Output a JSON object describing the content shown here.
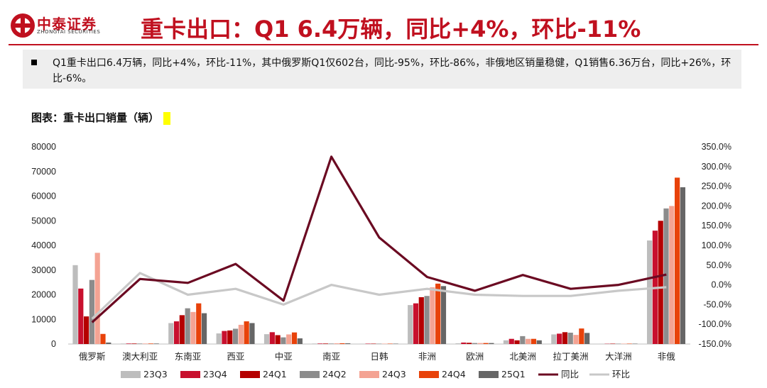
{
  "header": {
    "logo_cn": "中泰证券",
    "logo_en": "ZHONGTAI SECURITIES",
    "headline": "重卡出口：Q1 6.4万辆，同比+4%，环比-11%"
  },
  "summary": {
    "text": "Q1重卡出口6.4万辆，同比+4%，环比-11%，其中俄罗斯Q1仅602台，同比-95%，环比-86%，非俄地区销量稳健，Q1销售6.36万台，同比+26%，环比-6%。"
  },
  "figure": {
    "title": "图表：重卡出口销量（辆）"
  },
  "colors": {
    "23Q3": "#bdbdbd",
    "23Q4": "#c8102e",
    "24Q1": "#b50000",
    "24Q2": "#8c8c8c",
    "24Q3": "#f4a393",
    "24Q4": "#e8420a",
    "25Q1": "#666666",
    "yoy": "#6b0a22",
    "qoq": "#c8c8c8"
  },
  "chart_data": {
    "type": "bar",
    "categories": [
      "俄罗斯",
      "澳大利亚",
      "东南亚",
      "西亚",
      "中亚",
      "南亚",
      "日韩",
      "非洲",
      "欧洲",
      "北美洲",
      "拉丁美洲",
      "大洋洲",
      "非俄"
    ],
    "series": [
      {
        "name": "23Q3",
        "values": [
          32000,
          200,
          8500,
          4300,
          4000,
          200,
          150,
          15800,
          300,
          1500,
          3900,
          100,
          42000
        ]
      },
      {
        "name": "23Q4",
        "values": [
          22500,
          200,
          9200,
          5300,
          4800,
          200,
          150,
          16500,
          600,
          2100,
          4200,
          100,
          46000
        ]
      },
      {
        "name": "24Q1",
        "values": [
          11200,
          200,
          11700,
          5500,
          3600,
          200,
          150,
          19000,
          500,
          1500,
          4800,
          150,
          50000
        ]
      },
      {
        "name": "24Q2",
        "values": [
          26000,
          200,
          14500,
          6200,
          2700,
          200,
          150,
          19500,
          400,
          3200,
          4600,
          150,
          55000
        ]
      },
      {
        "name": "24Q3",
        "values": [
          37000,
          200,
          13000,
          7800,
          3900,
          300,
          150,
          23000,
          400,
          2100,
          3700,
          150,
          56000
        ]
      },
      {
        "name": "24Q4",
        "values": [
          4100,
          200,
          16500,
          9200,
          4700,
          300,
          150,
          24500,
          400,
          2100,
          6300,
          150,
          67500
        ]
      },
      {
        "name": "25Q1",
        "values": [
          602,
          200,
          12500,
          8500,
          2300,
          300,
          150,
          23500,
          400,
          1500,
          4500,
          150,
          63600
        ]
      },
      {
        "name": "同比",
        "axis": "right",
        "values": [
          -95,
          15,
          5,
          53,
          -40,
          325,
          120,
          20,
          -15,
          25,
          -10,
          0,
          26
        ]
      },
      {
        "name": "环比",
        "axis": "right",
        "values": [
          -86,
          30,
          -25,
          -10,
          -50,
          0,
          -25,
          -10,
          -25,
          -28,
          -28,
          -15,
          -6
        ]
      }
    ],
    "y_left": {
      "ticks": [
        "80000",
        "70000",
        "60000",
        "50000",
        "40000",
        "30000",
        "20000",
        "10000",
        "0"
      ],
      "range": [
        0,
        80000
      ]
    },
    "y_right": {
      "ticks": [
        "350.0%",
        "300.0%",
        "250.0%",
        "200.0%",
        "150.0%",
        "100.0%",
        "50.0%",
        "0.0%",
        "-50.0%",
        "-100.0%",
        "-150.0%"
      ],
      "range": [
        -150,
        350
      ]
    },
    "legend_position": "bottom",
    "grid": false
  }
}
